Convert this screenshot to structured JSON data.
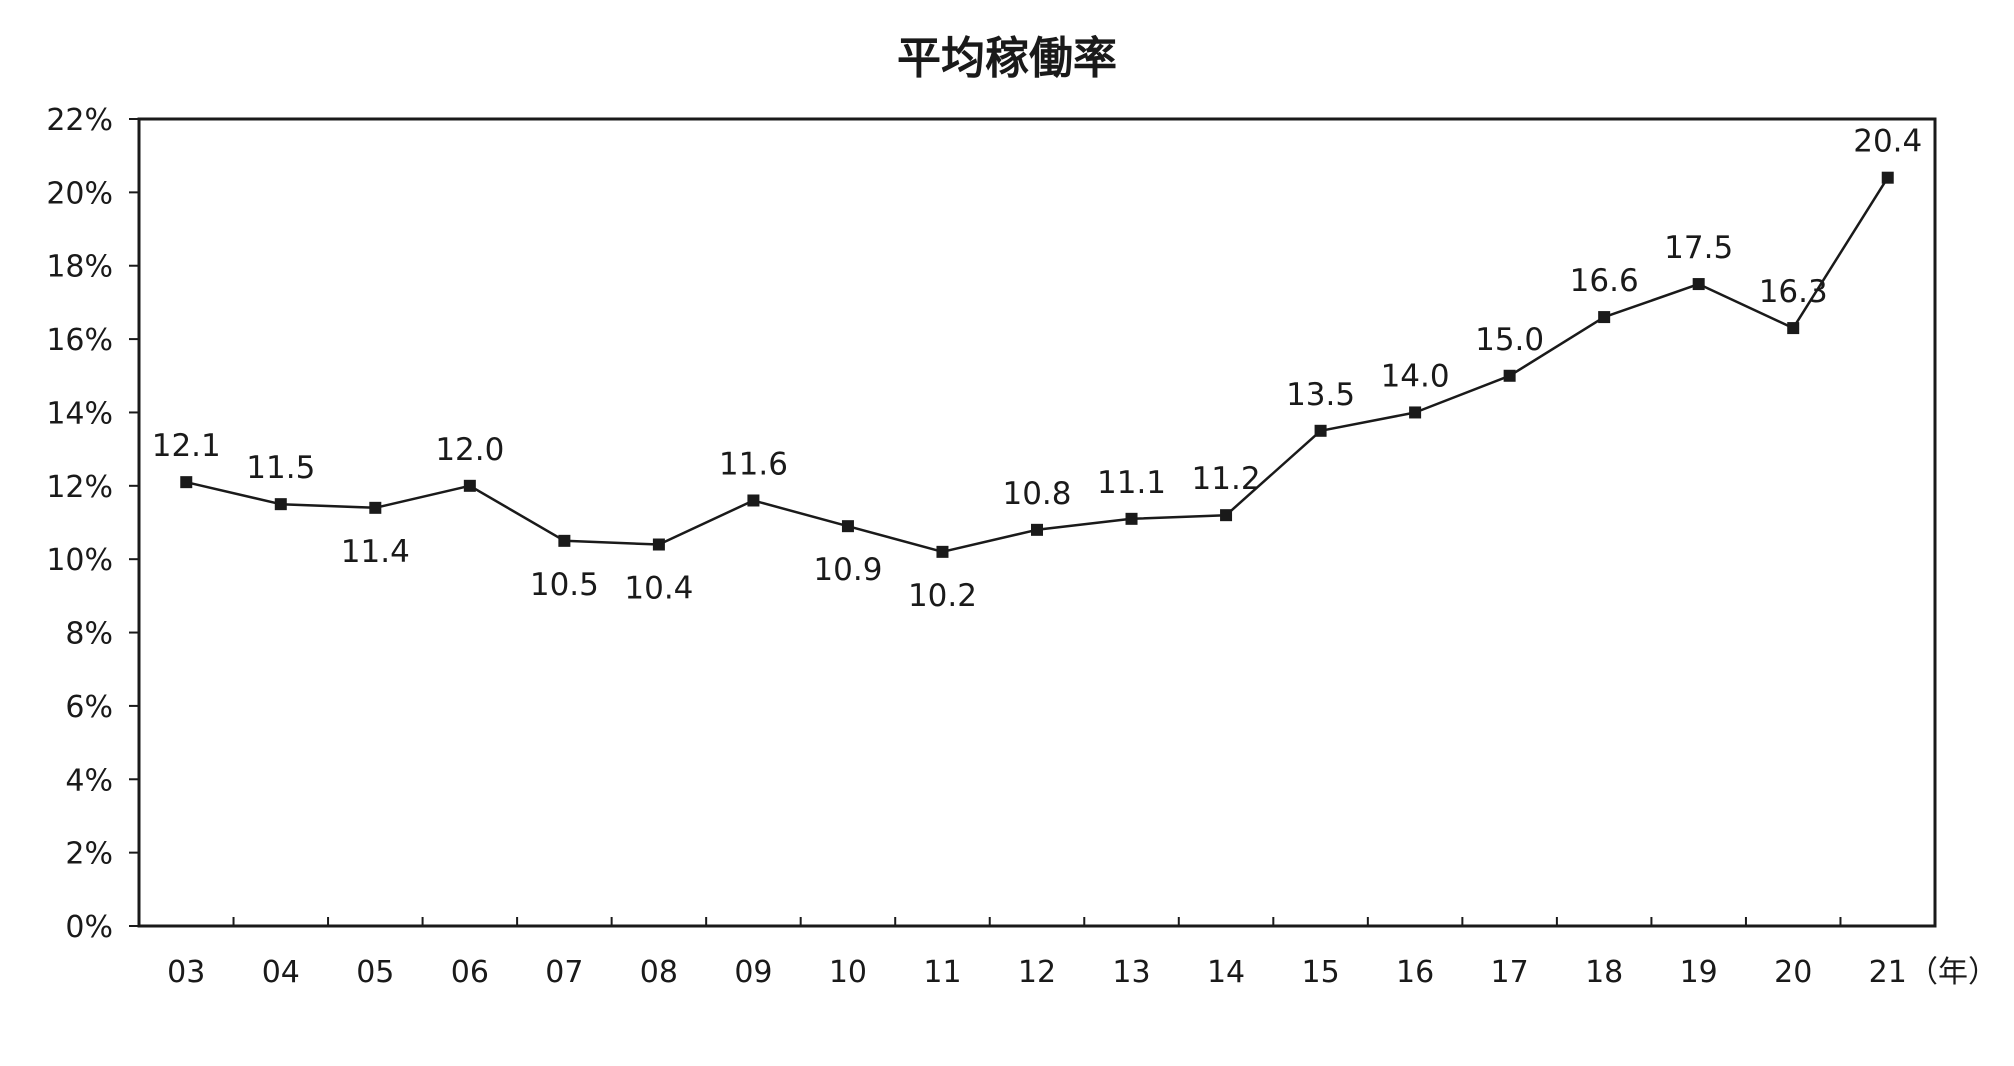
{
  "chart_data": {
    "type": "line",
    "title": "平均稼働率",
    "xlabel": "",
    "ylabel": "",
    "x_unit_label": "（年）",
    "categories": [
      "03",
      "04",
      "05",
      "06",
      "07",
      "08",
      "09",
      "10",
      "11",
      "12",
      "13",
      "14",
      "15",
      "16",
      "17",
      "18",
      "19",
      "20",
      "21"
    ],
    "series": [
      {
        "values": [
          12.1,
          11.5,
          11.4,
          12.0,
          10.5,
          10.4,
          11.6,
          10.9,
          10.2,
          10.8,
          11.1,
          11.2,
          13.5,
          14.0,
          15.0,
          16.6,
          17.5,
          16.3,
          20.4
        ],
        "data_labels": [
          "12.1",
          "11.5",
          "11.4",
          "12.0",
          "10.5",
          "10.4",
          "11.6",
          "10.9",
          "10.2",
          "10.8",
          "11.1",
          "11.2",
          "13.5",
          "14.0",
          "15.0",
          "16.6",
          "17.5",
          "16.3",
          "20.4"
        ],
        "label_positions": [
          "above",
          "above",
          "below",
          "above",
          "below",
          "below",
          "above",
          "below",
          "below",
          "above",
          "above",
          "above",
          "above",
          "above",
          "above",
          "above",
          "above",
          "above",
          "above"
        ]
      }
    ],
    "ylim": [
      0,
      22
    ],
    "y_ticks": [
      "0%",
      "2%",
      "4%",
      "6%",
      "8%",
      "10%",
      "12%",
      "14%",
      "16%",
      "18%",
      "20%",
      "22%"
    ],
    "grid": false,
    "legend": "none",
    "marker": "square",
    "colors": {
      "line": "#1a1a1a",
      "marker": "#1a1a1a",
      "axis": "#1a1a1a",
      "text": "#1a1a1a"
    }
  }
}
